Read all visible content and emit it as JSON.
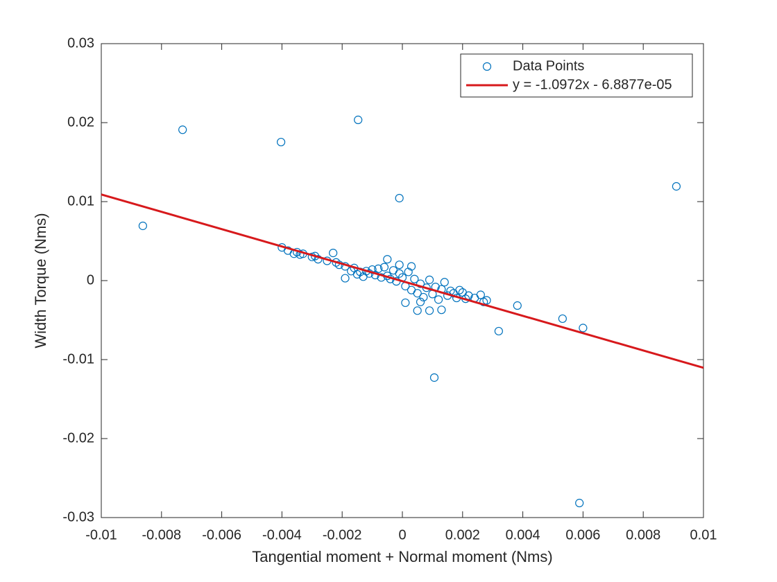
{
  "chart_data": {
    "type": "scatter",
    "xlabel": "Tangential moment + Normal moment (Nms)",
    "ylabel": "Width Torque (Nms)",
    "xlim": [
      -0.01,
      0.01
    ],
    "ylim": [
      -0.03,
      0.03
    ],
    "xticks": [
      -0.01,
      -0.008,
      -0.006,
      -0.004,
      -0.002,
      0,
      0.002,
      0.004,
      0.006,
      0.008,
      0.01
    ],
    "yticks": [
      -0.03,
      -0.02,
      -0.01,
      0,
      0.01,
      0.02,
      0.03
    ],
    "grid": false,
    "legend": "northeast",
    "series": [
      {
        "name": "Data Points",
        "mode": "markers",
        "color": "#0072bd",
        "x": [
          -0.00862,
          -0.0073,
          -0.00403,
          -0.00147,
          -0.0001,
          0.0091,
          0.00106,
          0.00588,
          0.0032,
          0.00532,
          0.006,
          0.00382,
          -0.004,
          -0.0038,
          -0.0036,
          -0.0035,
          -0.0034,
          -0.0033,
          -0.003,
          -0.0029,
          -0.0028,
          -0.0025,
          -0.0023,
          -0.0022,
          -0.0021,
          -0.0019,
          -0.0017,
          -0.0016,
          -0.0015,
          -0.0014,
          -0.0013,
          -0.0012,
          -0.0011,
          -0.001,
          -0.0009,
          -0.0008,
          -0.0007,
          -0.0006,
          -0.0005,
          -0.0004,
          -0.0003,
          -0.0002,
          -0.0001,
          0,
          0.0001,
          0.0002,
          0.0003,
          0.0004,
          0.0005,
          0.0006,
          0.0007,
          0.0008,
          0.0009,
          0.001,
          0.0011,
          0.0012,
          0.0013,
          0.0014,
          0.0015,
          0.0016,
          0.0017,
          0.0018,
          0.0019,
          0.002,
          0.0021,
          0.0022,
          0.0024,
          0.0026,
          0.0027,
          0.0028,
          -0.0005,
          0.0005,
          0.0009,
          0.0013,
          0.0001,
          -0.0019,
          0.0006,
          -0.0001,
          0.0003
        ],
        "y": [
          0.00693,
          0.0191,
          0.01754,
          0.02035,
          0.01044,
          0.01193,
          -0.01228,
          -0.02816,
          -0.0064,
          -0.00482,
          -0.006,
          -0.00316,
          0.0042,
          0.0038,
          0.0034,
          0.0036,
          0.0033,
          0.0034,
          0.003,
          0.0031,
          0.0027,
          0.0025,
          0.0035,
          0.0023,
          0.002,
          0.0018,
          0.0012,
          0.0016,
          0.0008,
          0.0011,
          0.0005,
          0.0012,
          0.0009,
          0.0014,
          0.0007,
          0.0015,
          0.0004,
          0.0017,
          0.0006,
          0.0002,
          0.0013,
          -0.0001,
          0.0009,
          0.0004,
          -0.0007,
          0.0011,
          -0.0012,
          0.0002,
          -0.0016,
          -0.0004,
          -0.0021,
          -0.0009,
          0.0001,
          -0.0017,
          -0.0008,
          -0.0024,
          -0.0011,
          -0.0002,
          -0.0019,
          -0.0013,
          -0.0016,
          -0.0022,
          -0.0012,
          -0.0015,
          -0.0023,
          -0.0019,
          -0.0022,
          -0.0018,
          -0.0027,
          -0.0025,
          0.0027,
          -0.0038,
          -0.0038,
          -0.0037,
          -0.0028,
          0.0003,
          -0.0027,
          0.002,
          0.0018
        ]
      },
      {
        "name": "y = -1.0972x - 6.8877e-05",
        "mode": "line",
        "color": "#d7191c",
        "x": [
          -0.01,
          0.01
        ],
        "y": [
          0.010903,
          -0.011041
        ]
      }
    ]
  }
}
